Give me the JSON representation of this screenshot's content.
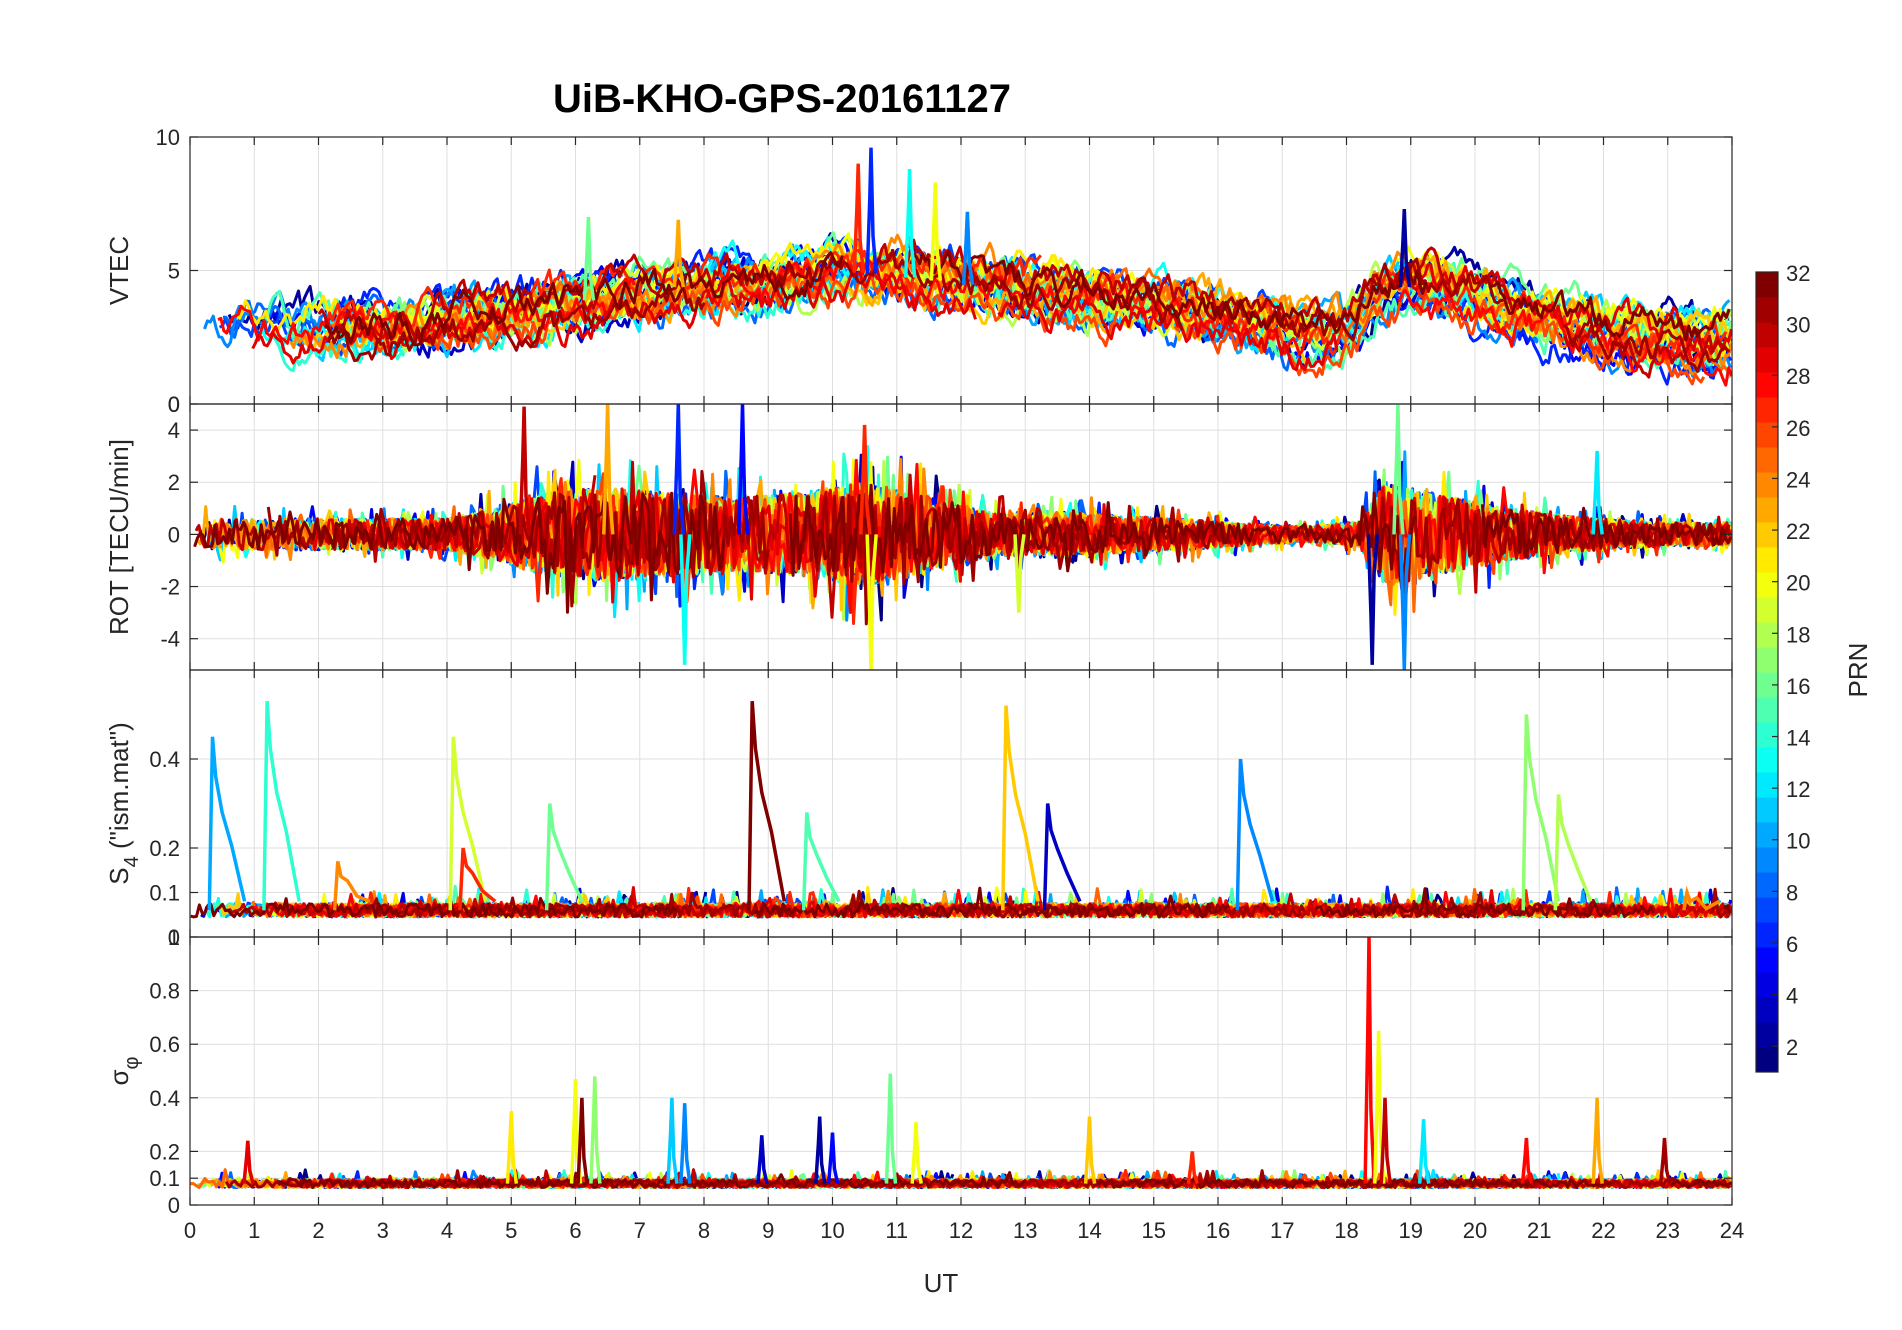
{
  "chart_data": {
    "type": "line",
    "title": "UiB-KHO-GPS-20161127",
    "xlabel": "UT",
    "x_ticks": [
      "0",
      "1",
      "2",
      "3",
      "4",
      "5",
      "6",
      "7",
      "8",
      "9",
      "10",
      "11",
      "12",
      "13",
      "14",
      "15",
      "16",
      "17",
      "18",
      "19",
      "20",
      "21",
      "22",
      "23",
      "24"
    ],
    "xlim": [
      0,
      24
    ],
    "grid": true,
    "colorbar": {
      "label": "PRN",
      "range": [
        1,
        32
      ],
      "ticks": [
        "2",
        "4",
        "6",
        "8",
        "10",
        "12",
        "14",
        "16",
        "18",
        "20",
        "22",
        "24",
        "26",
        "28",
        "30",
        "32"
      ],
      "colormap": "jet",
      "levels": 32
    },
    "panels": [
      {
        "id": "vtec",
        "ylabel": "VTEC",
        "ylim": [
          0,
          10
        ],
        "y_ticks": [
          {
            "v": 0,
            "t": "0"
          },
          {
            "v": 5,
            "t": "5"
          },
          {
            "v": 10,
            "t": "10"
          }
        ],
        "envelope": [
          [
            0,
            2.7
          ],
          [
            1,
            3
          ],
          [
            2,
            2.9
          ],
          [
            3,
            2.8
          ],
          [
            4,
            3.2
          ],
          [
            5,
            3.5
          ],
          [
            6,
            3.8
          ],
          [
            7,
            4.2
          ],
          [
            8,
            4.5
          ],
          [
            9,
            4.6
          ],
          [
            10,
            5
          ],
          [
            11,
            4.8
          ],
          [
            12,
            4.5
          ],
          [
            13,
            4.2
          ],
          [
            14,
            3.9
          ],
          [
            15,
            3.5
          ],
          [
            16,
            3.2
          ],
          [
            17,
            2.6
          ],
          [
            18,
            2.6
          ],
          [
            18.4,
            4.3
          ],
          [
            19,
            4.4
          ],
          [
            20,
            3.8
          ],
          [
            21,
            3.2
          ],
          [
            22,
            2.6
          ],
          [
            23,
            2.4
          ],
          [
            24,
            2.3
          ]
        ],
        "peaks": [
          [
            10.6,
            9.6
          ],
          [
            11.2,
            8.8
          ],
          [
            11.6,
            8.3
          ],
          [
            10.4,
            9
          ],
          [
            18.9,
            7.3
          ],
          [
            12.1,
            7.2
          ],
          [
            6.2,
            7
          ],
          [
            7.6,
            6.9
          ]
        ]
      },
      {
        "id": "rot",
        "ylabel": "ROT [TECU/min]",
        "ylim": [
          -5.2,
          5
        ],
        "y_ticks": [
          {
            "v": -4,
            "t": "-4"
          },
          {
            "v": -2,
            "t": "-2"
          },
          {
            "v": 0,
            "t": "0"
          },
          {
            "v": 2,
            "t": "2"
          },
          {
            "v": 4,
            "t": "4"
          }
        ],
        "top_tick_label": "0",
        "envelope": [
          [
            0,
            0.6
          ],
          [
            4,
            0.6
          ],
          [
            4.8,
            1
          ],
          [
            5.5,
            1.6
          ],
          [
            6.5,
            1.8
          ],
          [
            7.5,
            1.6
          ],
          [
            8.5,
            1.4
          ],
          [
            9.5,
            1.6
          ],
          [
            10.5,
            2
          ],
          [
            11.5,
            1.5
          ],
          [
            12.5,
            0.8
          ],
          [
            13.5,
            0.9
          ],
          [
            14.5,
            0.7
          ],
          [
            15.5,
            0.6
          ],
          [
            16.5,
            0.4
          ],
          [
            17.5,
            0.3
          ],
          [
            18.2,
            0.5
          ],
          [
            18.6,
            2
          ],
          [
            19.5,
            1.5
          ],
          [
            20.5,
            1
          ],
          [
            21.5,
            0.7
          ],
          [
            22.5,
            0.5
          ],
          [
            24,
            0.4
          ]
        ],
        "peaks": [
          [
            7.6,
            5
          ],
          [
            7.7,
            -5
          ],
          [
            10.6,
            -5.2
          ],
          [
            10.5,
            4.2
          ],
          [
            18.4,
            -5
          ],
          [
            18.9,
            -5.2
          ],
          [
            18.8,
            5
          ],
          [
            6.5,
            5
          ],
          [
            5.2,
            4.9
          ],
          [
            8.6,
            5
          ],
          [
            21.9,
            3.2
          ],
          [
            12.9,
            -3
          ]
        ]
      },
      {
        "id": "s4",
        "ylabel": "S4 (\"ism.mat\")",
        "ylabel_main": "S",
        "ylabel_sub": "4",
        "ylabel_rest": " (\"ism.mat\")",
        "ylim": [
          0,
          0.6
        ],
        "y_ticks": [
          {
            "v": 0,
            "t": "0"
          },
          {
            "v": 0.1,
            "t": "0.1"
          },
          {
            "v": 0.2,
            "t": "0.2"
          },
          {
            "v": 0.4,
            "t": "0.4"
          }
        ],
        "baseline": 0.06,
        "peaks": [
          [
            0.35,
            0.45,
            10
          ],
          [
            1.2,
            0.53,
            14
          ],
          [
            2.3,
            0.17,
            24
          ],
          [
            4.1,
            0.45,
            19
          ],
          [
            4.25,
            0.2,
            27
          ],
          [
            5.6,
            0.3,
            16
          ],
          [
            8.75,
            0.53,
            32
          ],
          [
            9.6,
            0.28,
            15
          ],
          [
            12.7,
            0.52,
            22
          ],
          [
            13.35,
            0.3,
            3
          ],
          [
            16.35,
            0.4,
            9
          ],
          [
            20.8,
            0.5,
            17
          ],
          [
            21.3,
            0.32,
            18
          ],
          [
            23.3,
            0.1,
            24
          ]
        ]
      },
      {
        "id": "sigma",
        "ylabel": "σφ",
        "ylabel_main": "σ",
        "ylabel_sub": "φ",
        "ylim": [
          0,
          1
        ],
        "y_ticks": [
          {
            "v": 0,
            "t": "0"
          },
          {
            "v": 0.1,
            "t": "0.1"
          },
          {
            "v": 0.2,
            "t": "0.2"
          },
          {
            "v": 0.4,
            "t": "0.4"
          },
          {
            "v": 0.6,
            "t": "0.6"
          },
          {
            "v": 0.8,
            "t": "0.8"
          }
        ],
        "top_tick_label": "1",
        "baseline": 0.08,
        "peaks": [
          [
            0.9,
            0.24,
            29
          ],
          [
            5.0,
            0.35,
            21
          ],
          [
            6.0,
            0.47,
            20
          ],
          [
            6.1,
            0.4,
            32
          ],
          [
            6.3,
            0.48,
            17
          ],
          [
            7.5,
            0.4,
            11
          ],
          [
            7.7,
            0.38,
            9
          ],
          [
            8.9,
            0.26,
            3
          ],
          [
            9.8,
            0.33,
            2
          ],
          [
            10.0,
            0.27,
            5
          ],
          [
            10.9,
            0.49,
            16
          ],
          [
            11.3,
            0.31,
            20
          ],
          [
            14.0,
            0.33,
            22
          ],
          [
            15.6,
            0.2,
            27
          ],
          [
            18.35,
            1.0,
            28
          ],
          [
            18.5,
            0.65,
            20
          ],
          [
            18.6,
            0.4,
            30
          ],
          [
            19.2,
            0.32,
            12
          ],
          [
            20.8,
            0.25,
            28
          ],
          [
            21.9,
            0.4,
            23
          ],
          [
            22.95,
            0.25,
            31
          ]
        ]
      }
    ]
  }
}
